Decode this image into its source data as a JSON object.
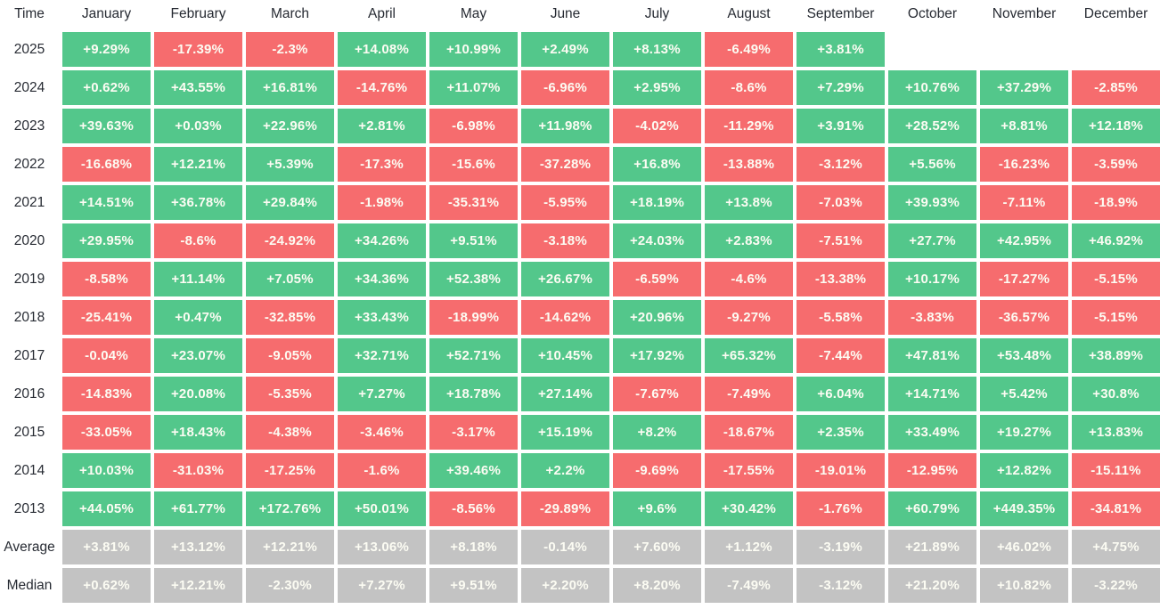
{
  "colors": {
    "positive": "#53c78b",
    "negative": "#f66c6e",
    "summary": "#c3c3c3",
    "cell_text": "#fcfcf3",
    "label_text": "#272b33",
    "background": "#ffffff"
  },
  "table": {
    "corner_label": "Time",
    "header": [
      "Time",
      "January",
      "February",
      "March",
      "April",
      "May",
      "June",
      "July",
      "August",
      "September",
      "October",
      "November",
      "December"
    ],
    "rows": [
      {
        "label": "2025",
        "kind": "year",
        "cells": [
          "+9.29%",
          "-17.39%",
          "-2.3%",
          "+14.08%",
          "+10.99%",
          "+2.49%",
          "+8.13%",
          "-6.49%",
          "+3.81%",
          "",
          "",
          ""
        ]
      },
      {
        "label": "2024",
        "kind": "year",
        "cells": [
          "+0.62%",
          "+43.55%",
          "+16.81%",
          "-14.76%",
          "+11.07%",
          "-6.96%",
          "+2.95%",
          "-8.6%",
          "+7.29%",
          "+10.76%",
          "+37.29%",
          "-2.85%"
        ]
      },
      {
        "label": "2023",
        "kind": "year",
        "cells": [
          "+39.63%",
          "+0.03%",
          "+22.96%",
          "+2.81%",
          "-6.98%",
          "+11.98%",
          "-4.02%",
          "-11.29%",
          "+3.91%",
          "+28.52%",
          "+8.81%",
          "+12.18%"
        ]
      },
      {
        "label": "2022",
        "kind": "year",
        "cells": [
          "-16.68%",
          "+12.21%",
          "+5.39%",
          "-17.3%",
          "-15.6%",
          "-37.28%",
          "+16.8%",
          "-13.88%",
          "-3.12%",
          "+5.56%",
          "-16.23%",
          "-3.59%"
        ]
      },
      {
        "label": "2021",
        "kind": "year",
        "cells": [
          "+14.51%",
          "+36.78%",
          "+29.84%",
          "-1.98%",
          "-35.31%",
          "-5.95%",
          "+18.19%",
          "+13.8%",
          "-7.03%",
          "+39.93%",
          "-7.11%",
          "-18.9%"
        ]
      },
      {
        "label": "2020",
        "kind": "year",
        "cells": [
          "+29.95%",
          "-8.6%",
          "-24.92%",
          "+34.26%",
          "+9.51%",
          "-3.18%",
          "+24.03%",
          "+2.83%",
          "-7.51%",
          "+27.7%",
          "+42.95%",
          "+46.92%"
        ]
      },
      {
        "label": "2019",
        "kind": "year",
        "cells": [
          "-8.58%",
          "+11.14%",
          "+7.05%",
          "+34.36%",
          "+52.38%",
          "+26.67%",
          "-6.59%",
          "-4.6%",
          "-13.38%",
          "+10.17%",
          "-17.27%",
          "-5.15%"
        ]
      },
      {
        "label": "2018",
        "kind": "year",
        "cells": [
          "-25.41%",
          "+0.47%",
          "-32.85%",
          "+33.43%",
          "-18.99%",
          "-14.62%",
          "+20.96%",
          "-9.27%",
          "-5.58%",
          "-3.83%",
          "-36.57%",
          "-5.15%"
        ]
      },
      {
        "label": "2017",
        "kind": "year",
        "cells": [
          "-0.04%",
          "+23.07%",
          "-9.05%",
          "+32.71%",
          "+52.71%",
          "+10.45%",
          "+17.92%",
          "+65.32%",
          "-7.44%",
          "+47.81%",
          "+53.48%",
          "+38.89%"
        ]
      },
      {
        "label": "2016",
        "kind": "year",
        "cells": [
          "-14.83%",
          "+20.08%",
          "-5.35%",
          "+7.27%",
          "+18.78%",
          "+27.14%",
          "-7.67%",
          "-7.49%",
          "+6.04%",
          "+14.71%",
          "+5.42%",
          "+30.8%"
        ]
      },
      {
        "label": "2015",
        "kind": "year",
        "cells": [
          "-33.05%",
          "+18.43%",
          "-4.38%",
          "-3.46%",
          "-3.17%",
          "+15.19%",
          "+8.2%",
          "-18.67%",
          "+2.35%",
          "+33.49%",
          "+19.27%",
          "+13.83%"
        ]
      },
      {
        "label": "2014",
        "kind": "year",
        "cells": [
          "+10.03%",
          "-31.03%",
          "-17.25%",
          "-1.6%",
          "+39.46%",
          "+2.2%",
          "-9.69%",
          "-17.55%",
          "-19.01%",
          "-12.95%",
          "+12.82%",
          "-15.11%"
        ]
      },
      {
        "label": "2013",
        "kind": "year",
        "cells": [
          "+44.05%",
          "+61.77%",
          "+172.76%",
          "+50.01%",
          "-8.56%",
          "-29.89%",
          "+9.6%",
          "+30.42%",
          "-1.76%",
          "+60.79%",
          "+449.35%",
          "-34.81%"
        ]
      },
      {
        "label": "Average",
        "kind": "summary",
        "cells": [
          "+3.81%",
          "+13.12%",
          "+12.21%",
          "+13.06%",
          "+8.18%",
          "-0.14%",
          "+7.60%",
          "+1.12%",
          "-3.19%",
          "+21.89%",
          "+46.02%",
          "+4.75%"
        ]
      },
      {
        "label": "Median",
        "kind": "summary",
        "cells": [
          "+0.62%",
          "+12.21%",
          "-2.30%",
          "+7.27%",
          "+9.51%",
          "+2.20%",
          "+8.20%",
          "-7.49%",
          "-3.12%",
          "+21.20%",
          "+10.82%",
          "-3.22%"
        ]
      }
    ]
  },
  "chart_data": {
    "type": "heatmap",
    "x_categories": [
      "January",
      "February",
      "March",
      "April",
      "May",
      "June",
      "July",
      "August",
      "September",
      "October",
      "November",
      "December"
    ],
    "y_categories": [
      "2025",
      "2024",
      "2023",
      "2022",
      "2021",
      "2020",
      "2019",
      "2018",
      "2017",
      "2016",
      "2015",
      "2014",
      "2013",
      "Average",
      "Median"
    ],
    "value_unit": "percent",
    "corner_label": "Time",
    "legend_position": "none",
    "grid": false,
    "series": [
      {
        "name": "2025",
        "values": [
          9.29,
          -17.39,
          -2.3,
          14.08,
          10.99,
          2.49,
          8.13,
          -6.49,
          3.81,
          null,
          null,
          null
        ]
      },
      {
        "name": "2024",
        "values": [
          0.62,
          43.55,
          16.81,
          -14.76,
          11.07,
          -6.96,
          2.95,
          -8.6,
          7.29,
          10.76,
          37.29,
          -2.85
        ]
      },
      {
        "name": "2023",
        "values": [
          39.63,
          0.03,
          22.96,
          2.81,
          -6.98,
          11.98,
          -4.02,
          -11.29,
          3.91,
          28.52,
          8.81,
          12.18
        ]
      },
      {
        "name": "2022",
        "values": [
          -16.68,
          12.21,
          5.39,
          -17.3,
          -15.6,
          -37.28,
          16.8,
          -13.88,
          -3.12,
          5.56,
          -16.23,
          -3.59
        ]
      },
      {
        "name": "2021",
        "values": [
          14.51,
          36.78,
          29.84,
          -1.98,
          -35.31,
          -5.95,
          18.19,
          13.8,
          -7.03,
          39.93,
          -7.11,
          -18.9
        ]
      },
      {
        "name": "2020",
        "values": [
          29.95,
          -8.6,
          -24.92,
          34.26,
          9.51,
          -3.18,
          24.03,
          2.83,
          -7.51,
          27.7,
          42.95,
          46.92
        ]
      },
      {
        "name": "2019",
        "values": [
          -8.58,
          11.14,
          7.05,
          34.36,
          52.38,
          26.67,
          -6.59,
          -4.6,
          -13.38,
          10.17,
          -17.27,
          -5.15
        ]
      },
      {
        "name": "2018",
        "values": [
          -25.41,
          0.47,
          -32.85,
          33.43,
          -18.99,
          -14.62,
          20.96,
          -9.27,
          -5.58,
          -3.83,
          -36.57,
          -5.15
        ]
      },
      {
        "name": "2017",
        "values": [
          -0.04,
          23.07,
          -9.05,
          32.71,
          52.71,
          10.45,
          17.92,
          65.32,
          -7.44,
          47.81,
          53.48,
          38.89
        ]
      },
      {
        "name": "2016",
        "values": [
          -14.83,
          20.08,
          -5.35,
          7.27,
          18.78,
          27.14,
          -7.67,
          -7.49,
          6.04,
          14.71,
          5.42,
          30.8
        ]
      },
      {
        "name": "2015",
        "values": [
          -33.05,
          18.43,
          -4.38,
          -3.46,
          -3.17,
          15.19,
          8.2,
          -18.67,
          2.35,
          33.49,
          19.27,
          13.83
        ]
      },
      {
        "name": "2014",
        "values": [
          10.03,
          -31.03,
          -17.25,
          -1.6,
          39.46,
          2.2,
          -9.69,
          -17.55,
          -19.01,
          -12.95,
          12.82,
          -15.11
        ]
      },
      {
        "name": "2013",
        "values": [
          44.05,
          61.77,
          172.76,
          50.01,
          -8.56,
          -29.89,
          9.6,
          30.42,
          -1.76,
          60.79,
          449.35,
          -34.81
        ]
      },
      {
        "name": "Average",
        "values": [
          3.81,
          13.12,
          12.21,
          13.06,
          8.18,
          -0.14,
          7.6,
          1.12,
          -3.19,
          21.89,
          46.02,
          4.75
        ]
      },
      {
        "name": "Median",
        "values": [
          0.62,
          12.21,
          -2.3,
          7.27,
          9.51,
          2.2,
          8.2,
          -7.49,
          -3.12,
          21.2,
          10.82,
          -3.22
        ]
      }
    ],
    "color_rules": {
      "positive": "#53c78b",
      "negative": "#f66c6e",
      "summary_rows": "#c3c3c3"
    }
  }
}
